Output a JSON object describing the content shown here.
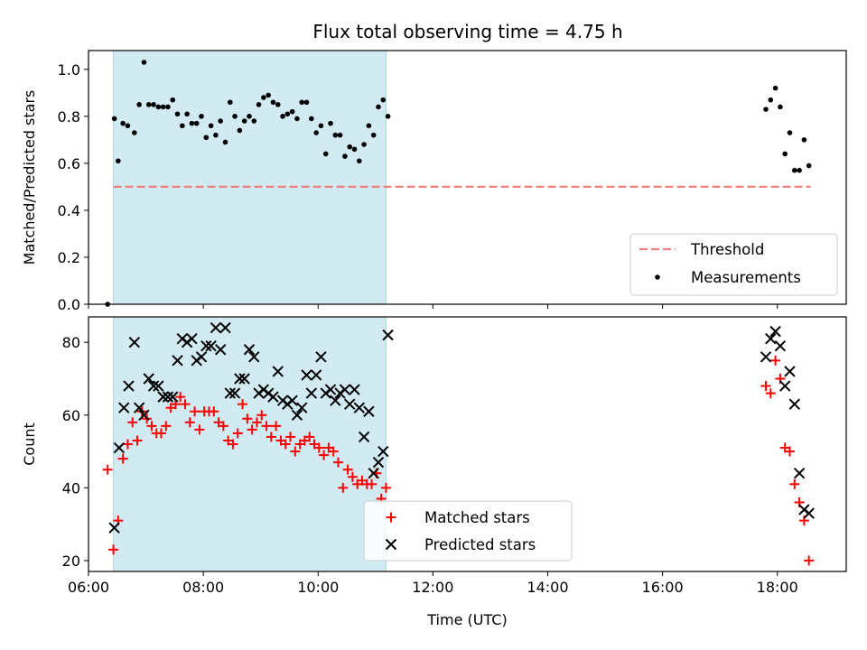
{
  "title": "Flux total observing time = 4.75 h",
  "colors": {
    "shade": "#add8e6",
    "threshold": "#f08080",
    "matched": "#ff0000",
    "predicted": "#000000",
    "measurement": "#000000"
  },
  "chart_data": [
    {
      "type": "scatter",
      "panel": "top",
      "ylabel": "Matched/Predicted stars",
      "xlabel": "",
      "ylim": [
        0,
        1.08
      ],
      "xlim": [
        "06:00",
        "19:12"
      ],
      "y_ticks": [
        "0.0",
        "0.2",
        "0.4",
        "0.6",
        "0.8",
        "1.0"
      ],
      "shaded_interval": [
        "06:26",
        "11:11"
      ],
      "legend_position": "lower-right",
      "series": [
        {
          "name": "Threshold",
          "style": "dashed-line",
          "x": [
            "06:26",
            "18:35"
          ],
          "y": [
            0.5,
            0.5
          ]
        },
        {
          "name": "Measurements",
          "style": "dot",
          "x": [
            "06:20",
            "06:27",
            "06:31",
            "06:36",
            "06:41",
            "06:48",
            "06:53",
            "06:58",
            "07:03",
            "07:08",
            "07:13",
            "07:18",
            "07:23",
            "07:28",
            "07:33",
            "07:38",
            "07:43",
            "07:48",
            "07:53",
            "07:58",
            "08:03",
            "08:08",
            "08:13",
            "08:18",
            "08:23",
            "08:28",
            "08:33",
            "08:38",
            "08:43",
            "08:48",
            "08:53",
            "08:58",
            "09:03",
            "09:08",
            "09:13",
            "09:18",
            "09:23",
            "09:28",
            "09:33",
            "09:38",
            "09:43",
            "09:48",
            "09:53",
            "09:58",
            "10:03",
            "10:08",
            "10:13",
            "10:18",
            "10:23",
            "10:28",
            "10:33",
            "10:38",
            "10:43",
            "10:48",
            "10:53",
            "10:58",
            "11:03",
            "11:08",
            "11:13",
            "17:48",
            "17:53",
            "17:58",
            "18:03",
            "18:08",
            "18:13",
            "18:18",
            "18:23",
            "18:28",
            "18:33"
          ],
          "y": [
            0.0,
            0.79,
            0.61,
            0.77,
            0.76,
            0.73,
            0.85,
            1.03,
            0.85,
            0.85,
            0.84,
            0.84,
            0.84,
            0.87,
            0.81,
            0.76,
            0.81,
            0.77,
            0.77,
            0.8,
            0.71,
            0.76,
            0.72,
            0.78,
            0.69,
            0.86,
            0.8,
            0.74,
            0.78,
            0.8,
            0.78,
            0.85,
            0.88,
            0.89,
            0.86,
            0.85,
            0.8,
            0.81,
            0.82,
            0.79,
            0.86,
            0.86,
            0.79,
            0.73,
            0.76,
            0.64,
            0.77,
            0.72,
            0.72,
            0.63,
            0.67,
            0.66,
            0.61,
            0.68,
            0.76,
            0.72,
            0.84,
            0.87,
            0.8,
            0.83,
            0.87,
            0.92,
            0.84,
            0.64,
            0.73,
            0.57,
            0.57,
            0.7,
            0.59
          ]
        }
      ]
    },
    {
      "type": "scatter",
      "panel": "bottom",
      "xlabel": "Time (UTC)",
      "ylabel": "Count",
      "ylim": [
        17,
        87
      ],
      "xlim": [
        "06:00",
        "19:12"
      ],
      "x_ticks": [
        "06:00",
        "08:00",
        "10:00",
        "12:00",
        "14:00",
        "16:00",
        "18:00"
      ],
      "y_ticks": [
        "20",
        "40",
        "60",
        "80"
      ],
      "shaded_interval": [
        "06:26",
        "11:11"
      ],
      "legend_position": "lower-center",
      "series": [
        {
          "name": "Matched stars",
          "marker": "plus",
          "x": [
            "06:20",
            "06:26",
            "06:31",
            "06:36",
            "06:41",
            "06:46",
            "06:51",
            "06:56",
            "07:01",
            "07:06",
            "07:11",
            "07:16",
            "07:21",
            "07:26",
            "07:31",
            "07:36",
            "07:41",
            "07:46",
            "07:51",
            "07:56",
            "08:01",
            "08:06",
            "08:11",
            "08:16",
            "08:21",
            "08:26",
            "08:31",
            "08:36",
            "08:41",
            "08:46",
            "08:51",
            "08:56",
            "09:01",
            "09:06",
            "09:11",
            "09:16",
            "09:21",
            "09:26",
            "09:31",
            "09:36",
            "09:41",
            "09:46",
            "09:51",
            "09:56",
            "10:01",
            "10:06",
            "10:11",
            "10:16",
            "10:21",
            "10:26",
            "10:31",
            "10:36",
            "10:41",
            "10:46",
            "10:51",
            "10:56",
            "11:01",
            "11:06",
            "11:11",
            "17:48",
            "17:53",
            "17:58",
            "18:03",
            "18:08",
            "18:13",
            "18:18",
            "18:23",
            "18:28",
            "18:33"
          ],
          "y": [
            45,
            23,
            31,
            48,
            52,
            58,
            53,
            61,
            59,
            57,
            55,
            55,
            57,
            62,
            63,
            65,
            63,
            58,
            61,
            56,
            61,
            61,
            61,
            58,
            57,
            53,
            52,
            55,
            63,
            59,
            56,
            58,
            60,
            57,
            54,
            57,
            53,
            52,
            54,
            50,
            52,
            53,
            54,
            52,
            51,
            49,
            51,
            50,
            47,
            40,
            45,
            43,
            41,
            42,
            41,
            41,
            44,
            37,
            40,
            68,
            66,
            75,
            70,
            51,
            50,
            41,
            36,
            31,
            20
          ]
        },
        {
          "name": "Predicted stars",
          "marker": "x",
          "x": [
            "06:27",
            "06:32",
            "06:37",
            "06:42",
            "06:48",
            "06:53",
            "06:58",
            "07:03",
            "07:08",
            "07:13",
            "07:18",
            "07:23",
            "07:28",
            "07:33",
            "07:38",
            "07:43",
            "07:48",
            "07:53",
            "07:58",
            "08:03",
            "08:08",
            "08:13",
            "08:18",
            "08:23",
            "08:28",
            "08:33",
            "08:38",
            "08:43",
            "08:48",
            "08:53",
            "08:58",
            "09:03",
            "09:08",
            "09:13",
            "09:18",
            "09:23",
            "09:28",
            "09:33",
            "09:38",
            "09:43",
            "09:48",
            "09:53",
            "09:58",
            "10:03",
            "10:08",
            "10:13",
            "10:18",
            "10:23",
            "10:28",
            "10:33",
            "10:38",
            "10:43",
            "10:48",
            "10:53",
            "10:58",
            "11:03",
            "11:08",
            "11:13",
            "17:48",
            "17:53",
            "17:58",
            "18:03",
            "18:08",
            "18:13",
            "18:18",
            "18:23",
            "18:28",
            "18:33"
          ],
          "y": [
            29,
            51,
            62,
            68,
            80,
            62,
            60,
            70,
            68,
            68,
            65,
            65,
            65,
            75,
            81,
            80,
            81,
            75,
            76,
            79,
            79,
            84,
            78,
            84,
            66,
            66,
            70,
            70,
            78,
            76,
            66,
            67,
            66,
            65,
            72,
            64,
            63,
            64,
            60,
            62,
            71,
            66,
            71,
            76,
            66,
            67,
            64,
            66,
            67,
            63,
            67,
            62,
            54,
            61,
            44,
            47,
            50,
            82,
            76,
            81,
            83,
            79,
            68,
            72,
            63,
            44,
            34,
            33
          ]
        }
      ]
    }
  ]
}
